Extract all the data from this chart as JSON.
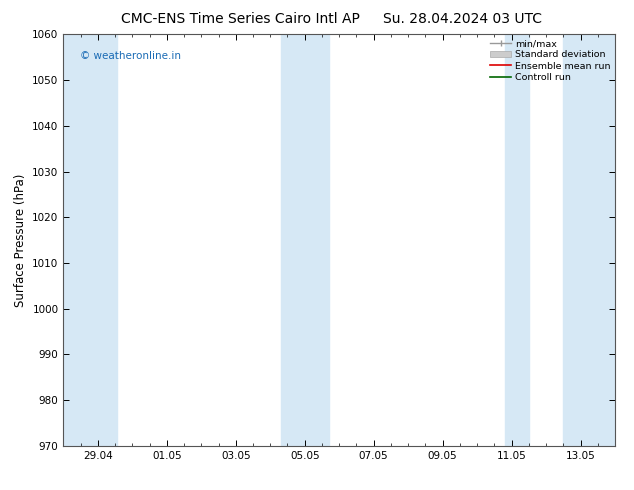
{
  "title_left": "CMC-ENS Time Series Cairo Intl AP",
  "title_right": "Su. 28.04.2024 03 UTC",
  "ylabel": "Surface Pressure (hPa)",
  "ylim": [
    970,
    1060
  ],
  "yticks": [
    970,
    980,
    990,
    1000,
    1010,
    1020,
    1030,
    1040,
    1050,
    1060
  ],
  "xtick_labels": [
    "29.04",
    "01.05",
    "03.05",
    "05.05",
    "07.05",
    "09.05",
    "11.05",
    "13.05"
  ],
  "band_color": "#d6e8f5",
  "watermark": "© weatheronline.in",
  "watermark_color": "#1a6bb5",
  "legend_labels": [
    "min/max",
    "Standard deviation",
    "Ensemble mean run",
    "Controll run"
  ],
  "bg_color": "#ffffff",
  "title_fontsize": 10,
  "label_fontsize": 8.5,
  "tick_fontsize": 7.5
}
